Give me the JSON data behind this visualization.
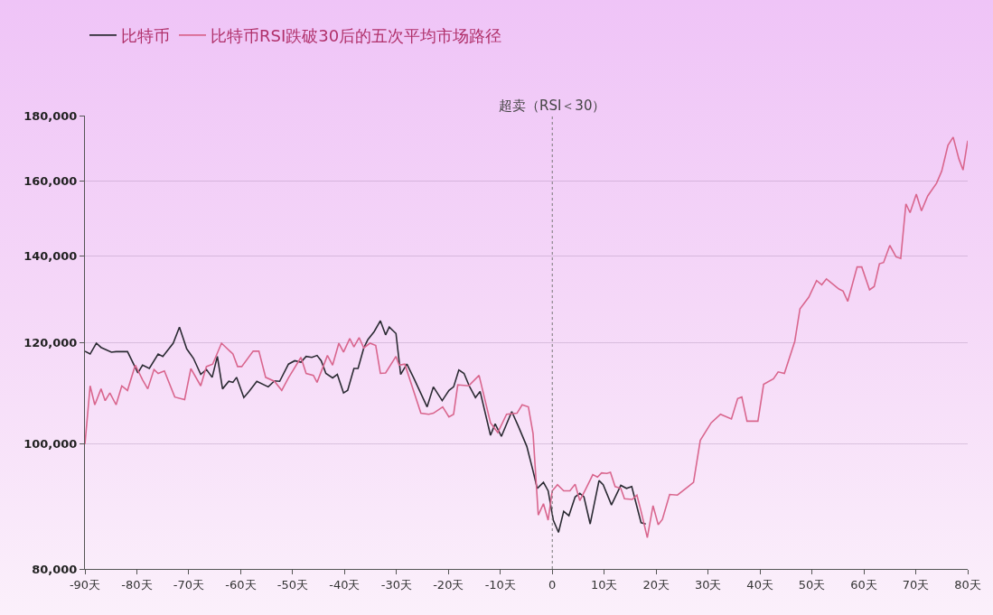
{
  "chart_data": {
    "type": "line",
    "log": "y",
    "grid": "y",
    "legend": "top left",
    "marker": "none",
    "line_style": "solid",
    "xlim": [
      -90,
      80
    ],
    "xticks": [
      {
        "value": -90,
        "label": "-90天"
      },
      {
        "value": -80,
        "label": "-80天"
      },
      {
        "value": -70,
        "label": "-70天"
      },
      {
        "value": -60,
        "label": "-60天"
      },
      {
        "value": -50,
        "label": "-50天"
      },
      {
        "value": -40,
        "label": "-40天"
      },
      {
        "value": -30,
        "label": "-30天"
      },
      {
        "value": -20,
        "label": "-20天"
      },
      {
        "value": -10,
        "label": "-10天"
      },
      0,
      {
        "value": 10,
        "label": "10天"
      },
      {
        "value": 20,
        "label": "20天"
      },
      {
        "value": 30,
        "label": "30天"
      },
      {
        "value": 40,
        "label": "40天"
      },
      {
        "value": 50,
        "label": "50天"
      },
      {
        "value": 60,
        "label": "60天"
      },
      {
        "value": 70,
        "label": "70天"
      },
      {
        "value": 80,
        "label": "80天"
      }
    ],
    "ylim": [
      80000,
      180000
    ],
    "yticks": [
      {
        "value": 80000,
        "label": "80,000"
      },
      {
        "value": 100000,
        "label": "100,000"
      },
      {
        "value": 120000,
        "label": "120,000"
      },
      {
        "value": 140000,
        "label": "140,000"
      },
      {
        "value": 160000,
        "label": "160,000"
      },
      {
        "value": 180000,
        "label": "180,000"
      }
    ],
    "ref_lines": [
      {
        "axis": "x",
        "value": 0,
        "label": "超卖（RSI＜30）",
        "color": "#777777",
        "line_style": "dotted"
      }
    ],
    "series": [
      {
        "name": "比特币",
        "color": "#2b2b33",
        "x": [
          -90,
          -89,
          -87.8,
          -86.9,
          -84.9,
          -84,
          -81.8,
          -79.8,
          -78.9,
          -77.6,
          -75.9,
          -75,
          -73,
          -71.8,
          -70.4,
          -69.1,
          -67.7,
          -66.6,
          -65.5,
          -64.5,
          -63.5,
          -62.3,
          -61.5,
          -60.8,
          -59.4,
          -58.4,
          -56.9,
          -54.7,
          -53.5,
          -52.5,
          -50.8,
          -49.6,
          -48.4,
          -47.4,
          -46.3,
          -45.3,
          -44.5,
          -43.6,
          -42.3,
          -41.4,
          -40.2,
          -39.4,
          -38.2,
          -37.4,
          -36.3,
          -35.5,
          -34.3,
          -33.1,
          -32.1,
          -31.4,
          -30.1,
          -29.2,
          -28,
          -26.7,
          -24.1,
          -22.9,
          -21.2,
          -19.9,
          -19,
          -18,
          -17,
          -16,
          -14.8,
          -13.9,
          -11.9,
          -11,
          -9.8,
          -7.8,
          -6.6,
          -4.9,
          -3.7,
          -2.9,
          -1.7,
          -0.8,
          0.2,
          1.2,
          2.2,
          3.2,
          4.4,
          5.3,
          6.1,
          7.3,
          9,
          9.8,
          11.4,
          13.2,
          14.3,
          15.3,
          17.1,
          18
        ],
        "values": [
          118100,
          117500,
          119800,
          118900,
          117900,
          118000,
          118000,
          113600,
          115200,
          114500,
          117500,
          117000,
          119800,
          123300,
          118600,
          116600,
          113300,
          114300,
          112700,
          117000,
          110400,
          111900,
          111700,
          112700,
          108700,
          109900,
          111900,
          110800,
          112000,
          111900,
          115400,
          116100,
          115800,
          117000,
          116800,
          117200,
          116100,
          113500,
          112600,
          113300,
          109600,
          110100,
          114500,
          114500,
          118800,
          120600,
          122300,
          124700,
          121600,
          123300,
          121900,
          113300,
          115400,
          112600,
          106900,
          110800,
          108100,
          110100,
          110800,
          114200,
          113500,
          111000,
          108700,
          109900,
          101600,
          103700,
          101400,
          106000,
          103400,
          99600,
          95300,
          92400,
          93400,
          92000,
          87300,
          85400,
          88700,
          88000,
          91000,
          91600,
          91000,
          86700,
          93700,
          93000,
          89700,
          92900,
          92400,
          92700,
          86900,
          86700
        ]
      },
      {
        "name": "比特币RSI跌破30后的五次平均市场路径",
        "color": "#d9668e",
        "x": [
          -90,
          -89,
          -88.1,
          -86.9,
          -86.1,
          -85.2,
          -84,
          -82.9,
          -81.8,
          -80.3,
          -78.9,
          -77.9,
          -76.7,
          -75.9,
          -74.7,
          -72.7,
          -70.8,
          -69.6,
          -67.7,
          -66.6,
          -65.4,
          -63.7,
          -61.5,
          -60.6,
          -59.8,
          -57.6,
          -56.5,
          -55.2,
          -53.5,
          -52.1,
          -50.8,
          -48.4,
          -47.4,
          -46,
          -45.3,
          -43.3,
          -42.3,
          -41.1,
          -40.2,
          -39,
          -38.2,
          -37.2,
          -36.3,
          -35.1,
          -34,
          -33.1,
          -32.1,
          -30.1,
          -29.5,
          -28.4,
          -25.3,
          -23.8,
          -22.9,
          -21.1,
          -19.9,
          -19,
          -18.2,
          -16.1,
          -14.1,
          -11.9,
          -10.5,
          -8.8,
          -6.8,
          -5.8,
          -4.6,
          -3.7,
          -2.7,
          -1.7,
          -0.8,
          0,
          1,
          2.2,
          3.4,
          4.4,
          5.3,
          6.5,
          7.8,
          8.7,
          9.5,
          10.5,
          11.2,
          12.1,
          13.2,
          13.9,
          15.4,
          16.3,
          17.1,
          18.3,
          19.4,
          20.4,
          21.2,
          22.6,
          24.1,
          27.2,
          28.5,
          30.6,
          32.4,
          34.5,
          35.7,
          36.5,
          37.5,
          39.6,
          40.7,
          42.6,
          43.5,
          44.7,
          46.7,
          47.7,
          49.4,
          50.9,
          51.9,
          52.8,
          55.2,
          56,
          56.9,
          58.7,
          59.6,
          61.1,
          62,
          63,
          63.8,
          65,
          66.2,
          67.1,
          68.1,
          68.9,
          70.1,
          71.1,
          72.3,
          74,
          75,
          76.2,
          77.2,
          78.3,
          79.1,
          80
        ],
        "values": [
          100000,
          111000,
          107300,
          110400,
          108100,
          109600,
          107300,
          111000,
          110100,
          115200,
          112200,
          110400,
          114300,
          113500,
          114000,
          108800,
          108300,
          114500,
          111000,
          114900,
          115400,
          119800,
          117500,
          114900,
          114900,
          118100,
          118100,
          112700,
          111900,
          110100,
          112600,
          116800,
          113500,
          113100,
          111700,
          117200,
          115200,
          119800,
          117900,
          120800,
          119000,
          121000,
          118800,
          119800,
          119300,
          113500,
          113600,
          117000,
          115200,
          115400,
          105700,
          105500,
          105700,
          106900,
          105000,
          105500,
          111200,
          111000,
          113100,
          103900,
          102100,
          105500,
          105700,
          107300,
          106900,
          101900,
          88100,
          89900,
          87300,
          92000,
          93000,
          92000,
          92000,
          93100,
          90400,
          92400,
          94700,
          94300,
          95000,
          94900,
          95100,
          92700,
          92400,
          90700,
          90600,
          91300,
          88700,
          84600,
          89600,
          86600,
          87400,
          91400,
          91300,
          93400,
          100700,
          103900,
          105500,
          104600,
          108500,
          108800,
          104200,
          104200,
          111300,
          112400,
          113800,
          113500,
          120200,
          127400,
          130100,
          134000,
          133000,
          134400,
          132000,
          131500,
          129100,
          137300,
          137300,
          131800,
          132600,
          138100,
          138400,
          142700,
          139800,
          139400,
          153700,
          151300,
          156400,
          151800,
          155900,
          159500,
          163000,
          170700,
          173200,
          166600,
          163300,
          172100
        ]
      }
    ]
  }
}
